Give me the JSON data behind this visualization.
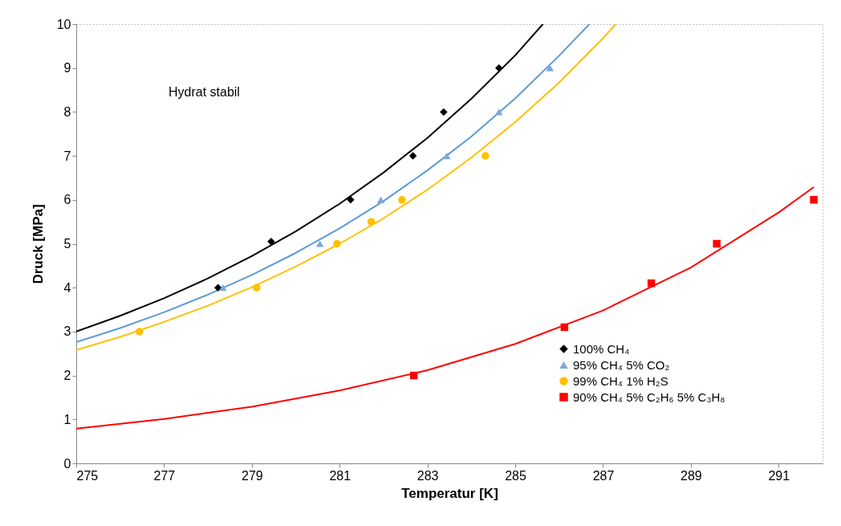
{
  "chart_data": {
    "type": "scatter",
    "xlabel": "Temperatur [K]",
    "ylabel": "Druck [MPa]",
    "xlim": [
      275,
      292
    ],
    "xticks": [
      275,
      277,
      279,
      281,
      283,
      285,
      287,
      289,
      291
    ],
    "ylim": [
      0,
      10
    ],
    "yticks": [
      0,
      1,
      2,
      3,
      4,
      5,
      6,
      7,
      8,
      9,
      10
    ],
    "legend": "bottom right",
    "annotations": [
      "Hydrat stabil"
    ],
    "series": [
      {
        "name": "100% CH₄",
        "marker": "diamond",
        "color": "#000000",
        "x": [
          278.23,
          279.44,
          281.25,
          282.67,
          283.37,
          284.63
        ],
        "values": [
          4,
          5.05,
          6,
          7,
          8,
          9
        ]
      },
      {
        "name": "95% CH₄ 5% CO₂",
        "marker": "triangle",
        "color": "#7fa7d9",
        "x": [
          278.34,
          280.55,
          281.94,
          283.44,
          284.63,
          285.79
        ],
        "values": [
          4,
          5,
          6,
          7,
          8,
          9
        ]
      },
      {
        "name": "99% CH₄ 1% H₂S",
        "marker": "circle",
        "color": "#ffc000",
        "x": [
          276.44,
          279.11,
          280.94,
          281.72,
          282.42,
          284.32
        ],
        "values": [
          3,
          4,
          5,
          5.5,
          6,
          7
        ]
      },
      {
        "name": "90% CH₄ 5% C₂H₆ 5% C₃H₈",
        "marker": "square",
        "color": "#ff0000",
        "x": [
          282.69,
          286.12,
          288.1,
          289.59,
          291.8
        ],
        "values": [
          2,
          3.1,
          4.1,
          5,
          6
        ]
      },
      {
        "type": "line",
        "color": "#000000",
        "x": [
          275,
          276,
          277,
          278,
          279,
          280,
          281,
          282,
          283,
          284,
          285,
          285.63
        ],
        "values": [
          3.0,
          3.36,
          3.76,
          4.21,
          4.72,
          5.28,
          5.91,
          6.62,
          7.41,
          8.3,
          9.29,
          10
        ]
      },
      {
        "type": "line",
        "color": "#5b9bd5",
        "x": [
          275,
          276,
          277,
          278,
          279,
          280,
          281,
          282,
          283,
          284,
          285,
          286,
          286.69
        ],
        "values": [
          2.76,
          3.08,
          3.44,
          3.84,
          4.29,
          4.79,
          5.35,
          5.97,
          6.67,
          7.44,
          8.31,
          9.28,
          10
        ]
      },
      {
        "type": "line",
        "color": "#ffc000",
        "x": [
          275,
          276,
          277,
          278,
          279,
          280,
          281,
          282,
          283,
          284,
          285,
          286,
          287,
          287.29
        ],
        "values": [
          2.58,
          2.88,
          3.22,
          3.59,
          4.01,
          4.48,
          5.0,
          5.58,
          6.23,
          6.96,
          7.77,
          8.67,
          9.68,
          10
        ]
      },
      {
        "type": "line",
        "color": "#ff0000",
        "x": [
          275,
          277,
          279,
          281,
          283,
          285,
          287,
          289,
          291,
          291.8
        ],
        "values": [
          0.79,
          1.01,
          1.29,
          1.66,
          2.12,
          2.72,
          3.48,
          4.46,
          5.71,
          6.29
        ]
      }
    ]
  }
}
